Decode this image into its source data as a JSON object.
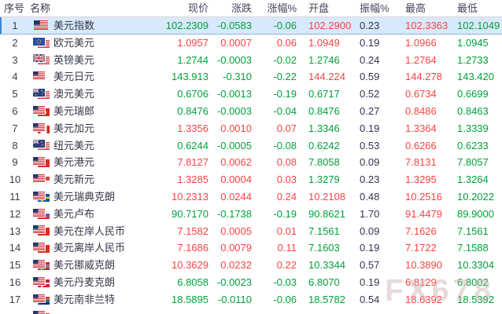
{
  "watermark": {
    "text": "FX678"
  },
  "colors": {
    "up": "#fb4343",
    "down": "#00a23c",
    "neutral": "#333355",
    "selected_row_bg": "#d8e9fb"
  },
  "table": {
    "columns": [
      {
        "key": "seq",
        "label": "序号"
      },
      {
        "key": "name",
        "label": "名称"
      },
      {
        "key": "price",
        "label": "现价"
      },
      {
        "key": "change",
        "label": "涨跌"
      },
      {
        "key": "change_pct",
        "label": "涨幅%"
      },
      {
        "key": "open",
        "label": "开盘"
      },
      {
        "key": "amplitude_pct",
        "label": "振幅%"
      },
      {
        "key": "high",
        "label": "最高"
      },
      {
        "key": "low",
        "label": "最低"
      }
    ],
    "rows": [
      {
        "seq": "1",
        "name": "美元指数",
        "flags": [
          "us"
        ],
        "price": "102.2309",
        "price_dir": "down",
        "change": "-0.0583",
        "change_dir": "down",
        "change_pct": "-0.06",
        "open": "102.2900",
        "open_dir": "up",
        "amplitude_pct": "0.23",
        "high": "102.3363",
        "low": "102.1049",
        "selected": true
      },
      {
        "seq": "2",
        "name": "欧元美元",
        "flags": [
          "eu",
          "us"
        ],
        "price": "1.0957",
        "price_dir": "up",
        "change": "0.0007",
        "change_dir": "up",
        "change_pct": "0.06",
        "open": "1.0949",
        "open_dir": "up",
        "amplitude_pct": "0.19",
        "high": "1.0966",
        "low": "1.0945",
        "selected": false
      },
      {
        "seq": "3",
        "name": "英镑美元",
        "flags": [
          "gb",
          "us"
        ],
        "price": "1.2744",
        "price_dir": "down",
        "change": "-0.0003",
        "change_dir": "down",
        "change_pct": "-0.02",
        "open": "1.2746",
        "open_dir": "down",
        "amplitude_pct": "0.24",
        "high": "1.2764",
        "low": "1.2733",
        "selected": false
      },
      {
        "seq": "4",
        "name": "美元日元",
        "flags": [
          "us",
          "jp"
        ],
        "price": "143.913",
        "price_dir": "down",
        "change": "-0.310",
        "change_dir": "down",
        "change_pct": "-0.22",
        "open": "144.224",
        "open_dir": "up",
        "amplitude_pct": "0.59",
        "high": "144.278",
        "low": "143.420",
        "selected": false
      },
      {
        "seq": "5",
        "name": "澳元美元",
        "flags": [
          "au",
          "us"
        ],
        "price": "0.6706",
        "price_dir": "down",
        "change": "-0.0013",
        "change_dir": "down",
        "change_pct": "-0.19",
        "open": "0.6717",
        "open_dir": "down",
        "amplitude_pct": "0.52",
        "high": "0.6734",
        "low": "0.6699",
        "selected": false
      },
      {
        "seq": "6",
        "name": "美元瑞郎",
        "flags": [
          "us",
          "ch"
        ],
        "price": "0.8476",
        "price_dir": "down",
        "change": "-0.0003",
        "change_dir": "down",
        "change_pct": "-0.04",
        "open": "0.8476",
        "open_dir": "down",
        "amplitude_pct": "0.27",
        "high": "0.8486",
        "low": "0.8463",
        "selected": false
      },
      {
        "seq": "7",
        "name": "美元加元",
        "flags": [
          "us",
          "ca"
        ],
        "price": "1.3356",
        "price_dir": "up",
        "change": "0.0010",
        "change_dir": "up",
        "change_pct": "0.07",
        "open": "1.3346",
        "open_dir": "down",
        "amplitude_pct": "0.19",
        "high": "1.3364",
        "low": "1.3339",
        "selected": false
      },
      {
        "seq": "8",
        "name": "纽元美元",
        "flags": [
          "nz",
          "us"
        ],
        "price": "0.6244",
        "price_dir": "down",
        "change": "-0.0005",
        "change_dir": "down",
        "change_pct": "-0.08",
        "open": "0.6242",
        "open_dir": "down",
        "amplitude_pct": "0.53",
        "high": "0.6266",
        "low": "0.6233",
        "selected": false
      },
      {
        "seq": "9",
        "name": "美元港元",
        "flags": [
          "us",
          "hk"
        ],
        "price": "7.8127",
        "price_dir": "up",
        "change": "0.0062",
        "change_dir": "up",
        "change_pct": "0.08",
        "open": "7.8058",
        "open_dir": "down",
        "amplitude_pct": "0.09",
        "high": "7.8131",
        "low": "7.8057",
        "selected": false
      },
      {
        "seq": "10",
        "name": "美元新元",
        "flags": [
          "us",
          "sg"
        ],
        "price": "1.3285",
        "price_dir": "up",
        "change": "0.0004",
        "change_dir": "up",
        "change_pct": "0.03",
        "open": "1.3279",
        "open_dir": "down",
        "amplitude_pct": "0.23",
        "high": "1.3295",
        "low": "1.3264",
        "selected": false
      },
      {
        "seq": "11",
        "name": "美元瑞典克朗",
        "flags": [
          "us",
          "se"
        ],
        "price": "10.2313",
        "price_dir": "up",
        "change": "0.0244",
        "change_dir": "up",
        "change_pct": "0.24",
        "open": "10.2108",
        "open_dir": "up",
        "amplitude_pct": "0.48",
        "high": "10.2516",
        "low": "10.2022",
        "selected": false
      },
      {
        "seq": "12",
        "name": "美元卢布",
        "flags": [
          "us",
          "ru"
        ],
        "price": "90.7170",
        "price_dir": "down",
        "change": "-0.1738",
        "change_dir": "down",
        "change_pct": "-0.19",
        "open": "90.8621",
        "open_dir": "down",
        "amplitude_pct": "1.70",
        "high": "91.4479",
        "low": "89.9000",
        "selected": false
      },
      {
        "seq": "13",
        "name": "美元在岸人民币",
        "flags": [
          "us",
          "cn"
        ],
        "price": "7.1582",
        "price_dir": "up",
        "change": "0.0005",
        "change_dir": "up",
        "change_pct": "0.01",
        "open": "7.1561",
        "open_dir": "down",
        "amplitude_pct": "0.09",
        "high": "7.1626",
        "low": "7.1561",
        "selected": false
      },
      {
        "seq": "14",
        "name": "美元离岸人民币",
        "flags": [
          "us",
          "cn"
        ],
        "price": "7.1686",
        "price_dir": "up",
        "change": "0.0079",
        "change_dir": "up",
        "change_pct": "0.11",
        "open": "7.1603",
        "open_dir": "down",
        "amplitude_pct": "0.19",
        "high": "7.1722",
        "low": "7.1588",
        "selected": false
      },
      {
        "seq": "15",
        "name": "美元挪威克朗",
        "flags": [
          "us",
          "no"
        ],
        "price": "10.3629",
        "price_dir": "up",
        "change": "0.0232",
        "change_dir": "up",
        "change_pct": "0.22",
        "open": "10.3344",
        "open_dir": "down",
        "amplitude_pct": "0.57",
        "high": "10.3890",
        "low": "10.3304",
        "selected": false
      },
      {
        "seq": "16",
        "name": "美元丹麦克朗",
        "flags": [
          "us",
          "dk"
        ],
        "price": "6.8058",
        "price_dir": "down",
        "change": "-0.0023",
        "change_dir": "down",
        "change_pct": "-0.03",
        "open": "6.8070",
        "open_dir": "down",
        "amplitude_pct": "0.19",
        "high": "6.8129",
        "low": "6.8002",
        "selected": false
      },
      {
        "seq": "17",
        "name": "美元南非兰特",
        "flags": [
          "us",
          "za"
        ],
        "price": "18.5895",
        "price_dir": "down",
        "change": "-0.0110",
        "change_dir": "down",
        "change_pct": "-0.06",
        "open": "18.5782",
        "open_dir": "down",
        "amplitude_pct": "0.54",
        "high": "18.6392",
        "low": "18.5392",
        "selected": false
      },
      {
        "seq": "",
        "name": "",
        "flags": [
          "us",
          "tr"
        ],
        "price": "",
        "price_dir": "down",
        "change": "",
        "change_dir": "down",
        "change_pct": "",
        "open": "",
        "open_dir": "down",
        "amplitude_pct": "",
        "high": "",
        "low": "",
        "selected": false
      }
    ]
  }
}
